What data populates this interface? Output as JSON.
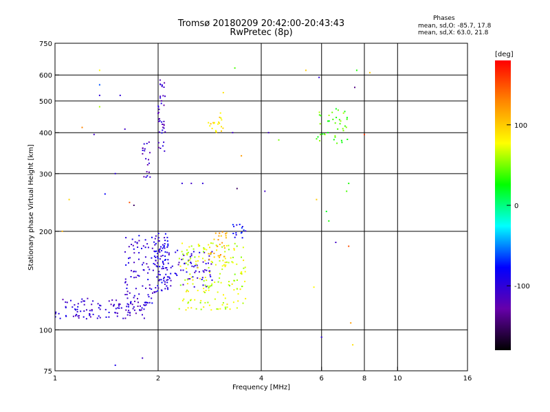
{
  "chart_data": {
    "type": "scatter",
    "title": "Tromsø 20180209 20:42:00-20:43:43",
    "subtitle": "RwPretec (8p)",
    "stats": {
      "heading": "Phases",
      "line_o": "mean, sd,O: -85.7, 17.8",
      "line_x": "mean, sd,X:  63.0, 21.8"
    },
    "xlabel": "Frequency [MHz]",
    "ylabel": "Stationary phase Virtual Height [km]",
    "x_scale": "log",
    "y_scale": "log",
    "xlim": [
      1,
      16
    ],
    "ylim": [
      75,
      750
    ],
    "x_ticks": [
      1,
      2,
      4,
      6,
      8,
      10,
      16
    ],
    "x_tick_labels": [
      "1",
      "2",
      "4",
      "6",
      "8",
      "10",
      "16"
    ],
    "x_grid_lines": [
      2,
      4,
      6,
      8,
      10
    ],
    "y_ticks": [
      75,
      100,
      200,
      300,
      400,
      500,
      600,
      750
    ],
    "y_tick_labels": [
      "75",
      "100",
      "200",
      "300",
      "400",
      "500",
      "600",
      "750"
    ],
    "y_grid_lines": [
      100,
      200,
      300,
      400,
      500,
      600
    ],
    "grid": true,
    "colorbar": {
      "label": "[deg]",
      "range": [
        -180,
        180
      ],
      "ticks": [
        100,
        0,
        -100
      ],
      "tick_labels": [
        "100",
        "0",
        "-100"
      ],
      "colors": [
        "#000000",
        "#6600aa",
        "#0000ff",
        "#00ffff",
        "#00ff00",
        "#ffff00",
        "#ff8800",
        "#ff0000"
      ]
    },
    "clusters": [
      {
        "name": "o_low_band",
        "x_range": [
          1.0,
          1.85
        ],
        "y_range": [
          108,
          125
        ],
        "phase": -105,
        "count": 120
      },
      {
        "name": "o_rise_1_8",
        "x_range": [
          1.6,
          1.95
        ],
        "y_range": [
          120,
          195
        ],
        "phase": -100,
        "count": 80
      },
      {
        "name": "o_column_2",
        "x_range": [
          1.95,
          2.15
        ],
        "y_range": [
          130,
          200
        ],
        "phase": -95,
        "count": 90
      },
      {
        "name": "o_right_2",
        "x_range": [
          2.1,
          2.9
        ],
        "y_range": [
          135,
          175
        ],
        "phase": -100,
        "count": 70
      },
      {
        "name": "o_high_col",
        "x_range": [
          2.0,
          2.1
        ],
        "y_range": [
          350,
          590
        ],
        "phase": -110,
        "count": 40
      },
      {
        "name": "o_high_18",
        "x_range": [
          1.8,
          1.9
        ],
        "y_range": [
          290,
          380
        ],
        "phase": -110,
        "count": 20
      },
      {
        "name": "x_band",
        "x_range": [
          2.3,
          3.6
        ],
        "y_range": [
          115,
          185
        ],
        "phase": 70,
        "count": 170
      },
      {
        "name": "x_peak",
        "x_range": [
          2.8,
          3.2
        ],
        "y_range": [
          160,
          200
        ],
        "phase": 110,
        "count": 30
      },
      {
        "name": "x_high",
        "x_range": [
          2.8,
          3.1
        ],
        "y_range": [
          400,
          460
        ],
        "phase": 90,
        "count": 20
      },
      {
        "name": "mix_6_7",
        "x_range": [
          5.8,
          7.3
        ],
        "y_range": [
          370,
          480
        ],
        "phase": 40,
        "count": 40
      },
      {
        "name": "scatter_mid",
        "x_range": [
          3.3,
          3.6
        ],
        "y_range": [
          190,
          210
        ],
        "phase": -80,
        "count": 15
      }
    ],
    "sparse_points": [
      [
        1.35,
        620,
        80
      ],
      [
        1.35,
        560,
        -60
      ],
      [
        1.35,
        520,
        -100
      ],
      [
        1.35,
        480,
        60
      ],
      [
        1.3,
        395,
        -110
      ],
      [
        1.2,
        415,
        130
      ],
      [
        1.1,
        250,
        95
      ],
      [
        1.05,
        200,
        110
      ],
      [
        1.55,
        520,
        -100
      ],
      [
        1.6,
        410,
        -110
      ],
      [
        1.5,
        300,
        -100
      ],
      [
        1.4,
        260,
        -80
      ],
      [
        1.65,
        245,
        150
      ],
      [
        1.7,
        240,
        -150
      ],
      [
        1.8,
        82,
        -110
      ],
      [
        1.5,
        78,
        -90
      ],
      [
        2.35,
        280,
        -100
      ],
      [
        2.5,
        280,
        -110
      ],
      [
        2.7,
        280,
        -100
      ],
      [
        3.3,
        400,
        -110
      ],
      [
        3.35,
        630,
        40
      ],
      [
        3.1,
        530,
        90
      ],
      [
        3.5,
        340,
        120
      ],
      [
        3.4,
        270,
        -150
      ],
      [
        4.1,
        265,
        -110
      ],
      [
        4.2,
        400,
        -110
      ],
      [
        4.5,
        380,
        50
      ],
      [
        5.4,
        620,
        100
      ],
      [
        5.9,
        590,
        -100
      ],
      [
        5.8,
        250,
        100
      ],
      [
        6.2,
        230,
        20
      ],
      [
        6.3,
        215,
        30
      ],
      [
        6.6,
        185,
        -110
      ],
      [
        7.2,
        180,
        150
      ],
      [
        7.3,
        105,
        120
      ],
      [
        7.4,
        90,
        90
      ],
      [
        7.2,
        280,
        30
      ],
      [
        7.1,
        265,
        40
      ],
      [
        7.6,
        620,
        30
      ],
      [
        7.5,
        550,
        -140
      ],
      [
        8.3,
        610,
        100
      ],
      [
        8.0,
        395,
        160
      ],
      [
        6.0,
        95,
        -100
      ],
      [
        5.7,
        135,
        80
      ]
    ]
  }
}
